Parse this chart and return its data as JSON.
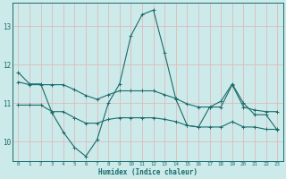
{
  "xlabel": "Humidex (Indice chaleur)",
  "bg_color": "#cceaea",
  "grid_color": "#ddbbbb",
  "line_color": "#1a6b6b",
  "xlim": [
    -0.5,
    23.5
  ],
  "ylim": [
    9.5,
    13.6
  ],
  "yticks": [
    10,
    11,
    12,
    13
  ],
  "xticks": [
    0,
    1,
    2,
    3,
    4,
    5,
    6,
    7,
    8,
    9,
    10,
    11,
    12,
    13,
    14,
    15,
    16,
    17,
    18,
    19,
    20,
    21,
    22,
    23
  ],
  "line1_x": [
    0,
    1,
    2,
    3,
    4,
    5,
    6,
    7,
    8,
    9,
    10,
    11,
    12,
    13,
    14,
    15,
    16,
    17,
    18,
    19,
    20,
    21,
    22,
    23
  ],
  "line1_y": [
    11.8,
    11.5,
    11.5,
    10.75,
    10.25,
    9.85,
    9.62,
    10.05,
    11.0,
    11.5,
    12.75,
    13.3,
    13.42,
    12.3,
    11.1,
    10.42,
    10.38,
    10.9,
    11.05,
    11.5,
    11.0,
    10.7,
    10.7,
    10.3
  ],
  "line2_x": [
    0,
    1,
    2,
    3,
    4,
    5,
    6,
    7,
    8,
    9,
    10,
    11,
    12,
    13,
    14,
    15,
    16,
    17,
    18,
    19,
    20,
    21,
    22,
    23
  ],
  "line2_y": [
    11.55,
    11.48,
    11.48,
    11.48,
    11.48,
    11.35,
    11.2,
    11.1,
    11.22,
    11.32,
    11.32,
    11.32,
    11.32,
    11.22,
    11.12,
    10.98,
    10.9,
    10.9,
    10.9,
    11.48,
    10.9,
    10.82,
    10.78,
    10.78
  ],
  "line3_x": [
    0,
    1,
    2,
    3,
    4,
    5,
    6,
    7,
    8,
    9,
    10,
    11,
    12,
    13,
    14,
    15,
    16,
    17,
    18,
    19,
    20,
    21,
    22,
    23
  ],
  "line3_y": [
    10.95,
    10.95,
    10.95,
    10.78,
    10.78,
    10.62,
    10.48,
    10.48,
    10.58,
    10.62,
    10.62,
    10.62,
    10.62,
    10.58,
    10.52,
    10.42,
    10.38,
    10.38,
    10.38,
    10.52,
    10.38,
    10.38,
    10.32,
    10.32
  ]
}
